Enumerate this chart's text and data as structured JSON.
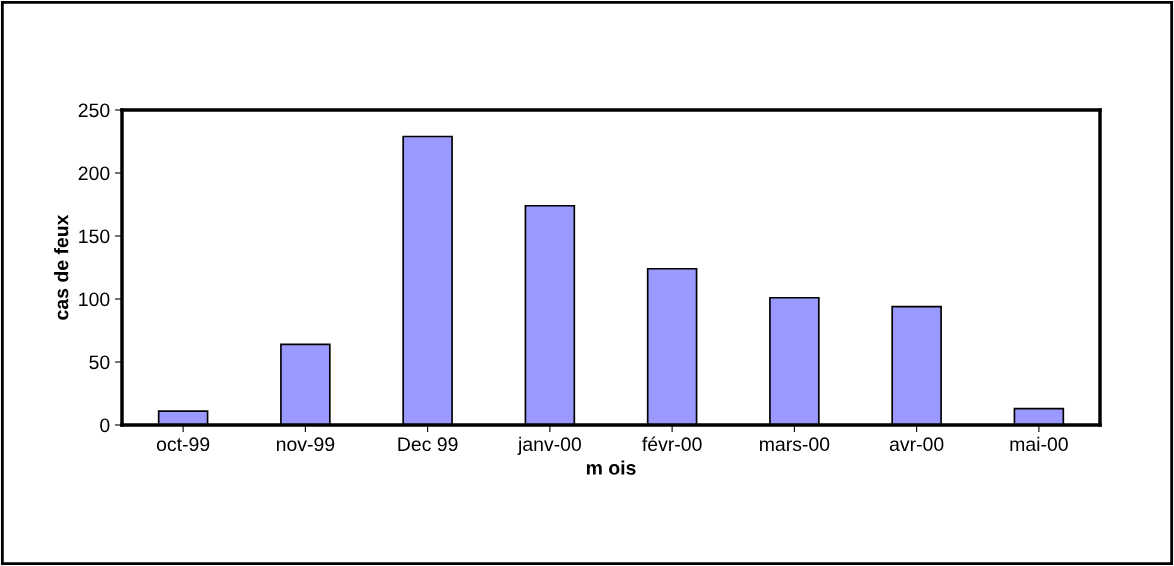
{
  "chart_data": {
    "type": "bar",
    "xlabel": "m ois",
    "ylabel": "cas de feux",
    "categories": [
      "oct-99",
      "nov-99",
      "Dec 99",
      "janv-00",
      "févr-00",
      "mars-00",
      "avr-00",
      "mai-00"
    ],
    "values": [
      11,
      64,
      229,
      174,
      124,
      101,
      94,
      13
    ],
    "color": "#9999ff",
    "ylim": [
      0,
      250
    ],
    "yticks": [
      0,
      50,
      100,
      150,
      200,
      250
    ],
    "grid": false,
    "legend": false
  }
}
